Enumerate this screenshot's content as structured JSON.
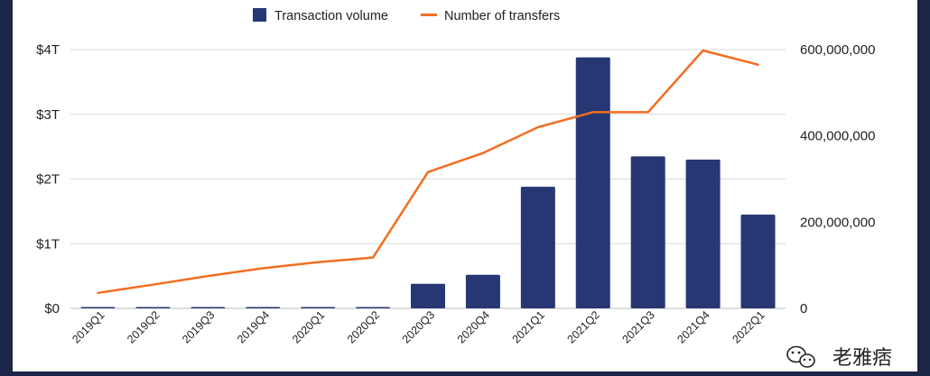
{
  "chart_data": {
    "type": "bar",
    "categories": [
      "2019Q1",
      "2019Q2",
      "2019Q3",
      "2019Q4",
      "2020Q1",
      "2020Q2",
      "2020Q3",
      "2020Q4",
      "2021Q1",
      "2021Q2",
      "2021Q3",
      "2021Q4",
      "2022Q1"
    ],
    "series": [
      {
        "name": "Transaction volume",
        "type": "bar",
        "axis": "left",
        "color": "#263773",
        "values": [
          0.0,
          0.0,
          0.02,
          0.0,
          0.02,
          0.02,
          0.38,
          0.52,
          1.88,
          3.88,
          2.35,
          2.3,
          1.45
        ]
      },
      {
        "name": "Number of transfers",
        "type": "line",
        "axis": "right",
        "color": "#f26d21",
        "values": [
          36000000,
          55000000,
          75000000,
          93000000,
          107000000,
          118000000,
          316000000,
          360000000,
          420000000,
          455000000,
          455000000,
          598000000,
          565000000
        ]
      }
    ],
    "left_axis": {
      "ylim": [
        0,
        4
      ],
      "ticks": [
        0,
        1,
        2,
        3,
        4
      ],
      "tick_labels": [
        "$0",
        "$1T",
        "$2T",
        "$3T",
        "$4T"
      ]
    },
    "right_axis": {
      "ylim": [
        0,
        600000000
      ],
      "ticks": [
        0,
        200000000,
        400000000,
        600000000
      ],
      "tick_labels": [
        "0",
        "200,000,000",
        "400,000,000",
        "600,000,000"
      ]
    },
    "grid": true,
    "legend_position": "top-center",
    "title": "",
    "xlabel": "",
    "ylabel": ""
  },
  "watermark": {
    "text": "老雅痞",
    "icon": "wechat-icon"
  }
}
